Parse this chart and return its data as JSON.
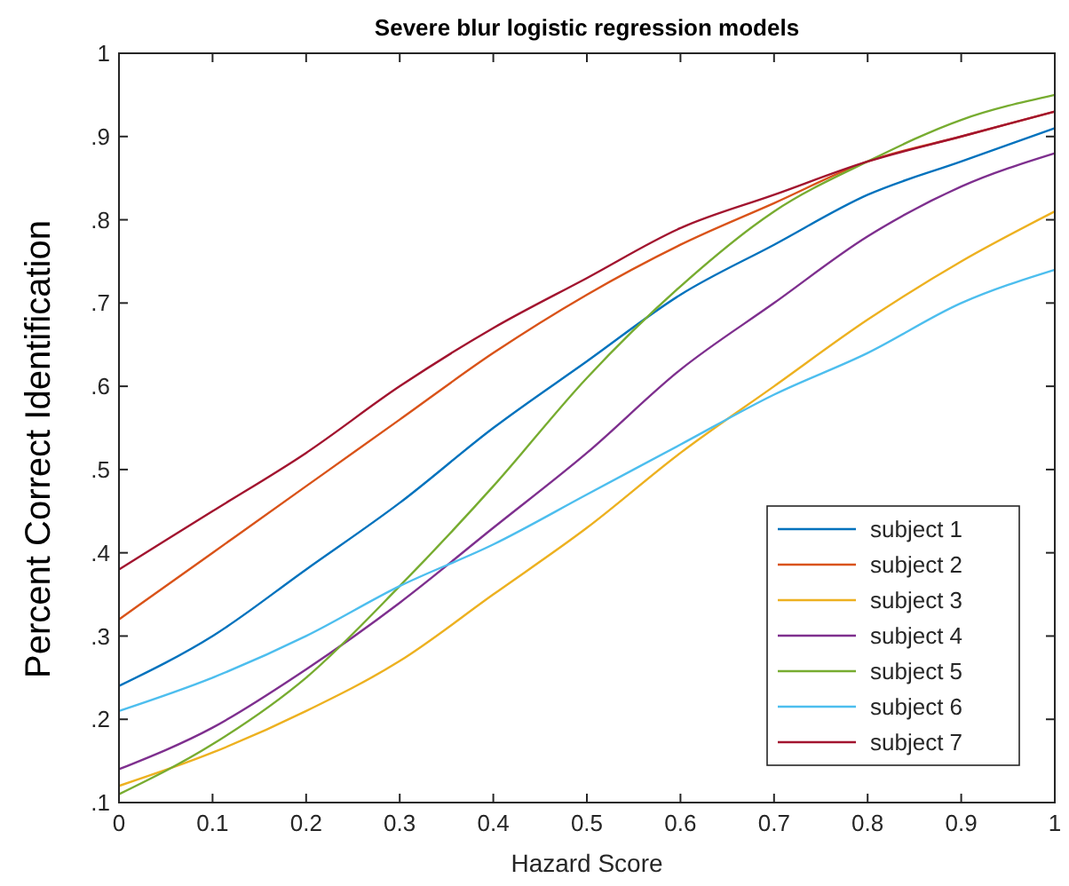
{
  "chart_data": {
    "type": "line",
    "title": "Severe blur logistic regression models",
    "xlabel": "Hazard Score",
    "ylabel": "Percent Correct Identification",
    "x": [
      0,
      0.1,
      0.2,
      0.3,
      0.4,
      0.5,
      0.6,
      0.7,
      0.8,
      0.9,
      1
    ],
    "series": [
      {
        "name": "subject 1",
        "color": "#0072bd",
        "values": [
          0.24,
          0.3,
          0.38,
          0.46,
          0.55,
          0.63,
          0.71,
          0.77,
          0.83,
          0.87,
          0.91
        ]
      },
      {
        "name": "subject 2",
        "color": "#d95319",
        "values": [
          0.32,
          0.4,
          0.48,
          0.56,
          0.64,
          0.71,
          0.77,
          0.82,
          0.87,
          0.9,
          0.93
        ]
      },
      {
        "name": "subject 3",
        "color": "#edb120",
        "values": [
          0.12,
          0.16,
          0.21,
          0.27,
          0.35,
          0.43,
          0.52,
          0.6,
          0.68,
          0.75,
          0.81
        ]
      },
      {
        "name": "subject 4",
        "color": "#7e2f8e",
        "values": [
          0.14,
          0.19,
          0.26,
          0.34,
          0.43,
          0.52,
          0.62,
          0.7,
          0.78,
          0.84,
          0.88
        ]
      },
      {
        "name": "subject 5",
        "color": "#77ac30",
        "values": [
          0.11,
          0.17,
          0.25,
          0.36,
          0.48,
          0.61,
          0.72,
          0.81,
          0.87,
          0.92,
          0.95
        ]
      },
      {
        "name": "subject 6",
        "color": "#4dbeee",
        "values": [
          0.21,
          0.25,
          0.3,
          0.36,
          0.41,
          0.47,
          0.53,
          0.59,
          0.64,
          0.7,
          0.74
        ]
      },
      {
        "name": "subject 7",
        "color": "#a2142f",
        "values": [
          0.38,
          0.45,
          0.52,
          0.6,
          0.67,
          0.73,
          0.79,
          0.83,
          0.87,
          0.9,
          0.93
        ]
      }
    ],
    "xlim": [
      0,
      1
    ],
    "xticks": [
      0,
      0.1,
      0.2,
      0.3,
      0.4,
      0.5,
      0.6,
      0.7,
      0.8,
      0.9,
      1
    ],
    "ylim": [
      0.1,
      1
    ],
    "yticks": [
      {
        "value": 0.1,
        "label": ".1"
      },
      {
        "value": 0.2,
        "label": ".2"
      },
      {
        "value": 0.3,
        "label": ".3"
      },
      {
        "value": 0.4,
        "label": ".4"
      },
      {
        "value": 0.5,
        "label": ".5"
      },
      {
        "value": 0.6,
        "label": ".6"
      },
      {
        "value": 0.7,
        "label": ".7"
      },
      {
        "value": 0.8,
        "label": ".8"
      },
      {
        "value": 0.9,
        "label": ".9"
      },
      {
        "value": 1,
        "label": "1"
      }
    ],
    "grid": false,
    "legend": "bottom right",
    "marker": "none",
    "line_style": "solid"
  }
}
